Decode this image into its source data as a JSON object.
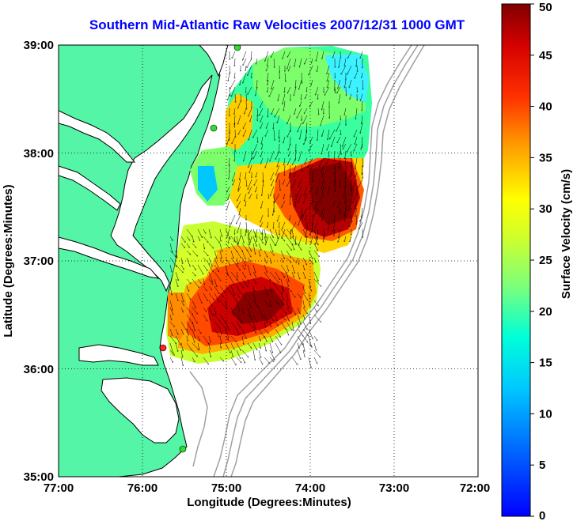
{
  "title": "Southern Mid-Atlantic Raw Velocities 2007/12/31 1000 GMT",
  "map": {
    "xlabel": "Longitude (Degrees:Minutes)",
    "ylabel": "Latitude (Degrees:Minutes)",
    "lon_ticks": [
      "77:00",
      "76:00",
      "75:00",
      "74:00",
      "73:00",
      "72:00"
    ],
    "lat_ticks": [
      "39:00",
      "38:00",
      "37:00",
      "36:00",
      "35:00"
    ],
    "lon_range": [
      -77,
      -72
    ],
    "lat_range": [
      35,
      39
    ],
    "grid": true
  },
  "colorbar": {
    "label": "Surface Velocity (cm/s)",
    "ticks": [
      "50",
      "45",
      "40",
      "35",
      "30",
      "25",
      "20",
      "15",
      "10",
      "5",
      "0"
    ],
    "range": [
      0,
      50
    ],
    "colormap": "jet"
  },
  "colors": {
    "land": "#54f5a7",
    "title": "#0000ff"
  }
}
